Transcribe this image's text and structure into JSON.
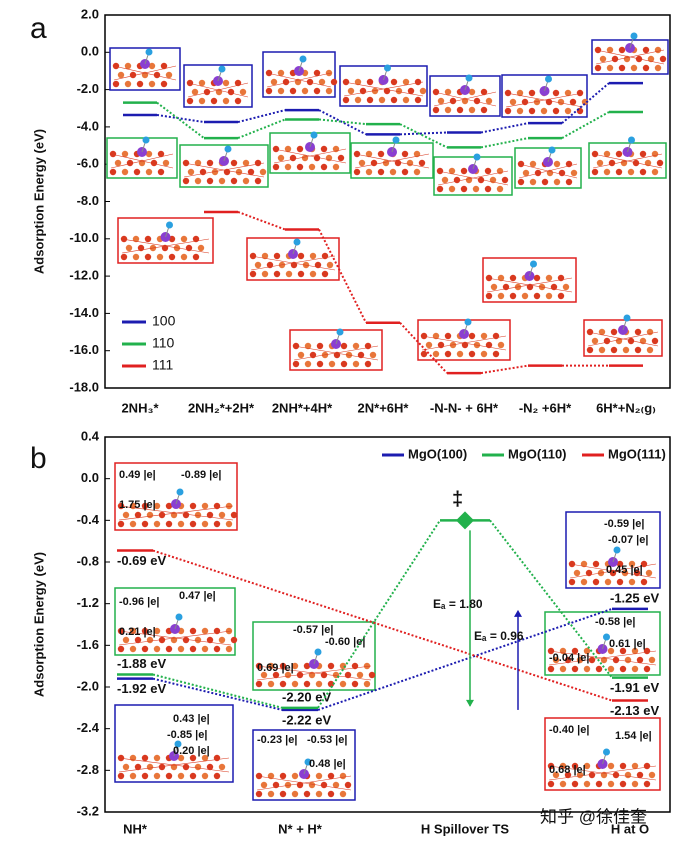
{
  "chart_data": [
    {
      "type": "line",
      "panel": "a",
      "ylabel": "Adsorption Energy (eV)",
      "categories": [
        "2NH₃*",
        "2NH₂*+2H*",
        "2NH*+4H*",
        "2N*+6H*",
        "-N-N- + 6H*",
        "-N₂ +6H*",
        "6H*+N₂₍g₎"
      ],
      "series": [
        {
          "name": "100",
          "color": "#1c1cb0",
          "values": [
            -3.36,
            -3.74,
            -3.1,
            -4.4,
            -4.3,
            -3.8,
            -1.65
          ]
        },
        {
          "name": "110",
          "color": "#22b14c",
          "values": [
            -2.7,
            -4.6,
            -3.6,
            -3.85,
            -5.1,
            -4.6,
            -3.2
          ]
        },
        {
          "name": "111",
          "color": "#e02020",
          "values": [
            null,
            -8.56,
            -9.5,
            -14.5,
            -17.2,
            -16.8,
            -16.8
          ]
        }
      ],
      "ylim": [
        -18,
        2
      ],
      "yticks": [
        {
          "value": 2,
          "label": "2.0"
        },
        {
          "value": 0,
          "label": "0.0"
        },
        {
          "value": -2,
          "label": "-2.0"
        },
        {
          "value": -4,
          "label": "-4.0"
        },
        {
          "value": -6,
          "label": "-6.0"
        },
        {
          "value": -8,
          "label": "-8.0"
        },
        {
          "value": -10,
          "label": "-10.0"
        },
        {
          "value": -12,
          "label": "-12.0"
        },
        {
          "value": -14,
          "label": "-14.0"
        },
        {
          "value": -16,
          "label": "-16.0"
        },
        {
          "value": -18,
          "label": "-18.0"
        }
      ],
      "legend": "lower left"
    },
    {
      "type": "line",
      "panel": "b",
      "ylabel": "Adsorption Energy (eV)",
      "categories": [
        "NH*",
        "N* + H*",
        "H Spillover TS",
        "H at O"
      ],
      "series": [
        {
          "name": "MgO(100)",
          "color": "#1c1cb0",
          "values": [
            -1.92,
            -2.22,
            null,
            -1.25
          ],
          "value_labels": [
            "-1.92 eV",
            "-2.22 eV",
            null,
            "-1.25 eV"
          ]
        },
        {
          "name": "MgO(110)",
          "color": "#22b14c",
          "values": [
            -1.88,
            -2.2,
            -0.4,
            -1.91
          ],
          "value_labels": [
            "-1.88 eV",
            "-2.20 eV",
            null,
            "-1.91 eV"
          ]
        },
        {
          "name": "MgO(111)",
          "color": "#e02020",
          "values": [
            -0.69,
            null,
            null,
            -2.13
          ],
          "value_labels": [
            "-0.69 eV",
            null,
            null,
            "-2.13 eV"
          ]
        }
      ],
      "ylim": [
        -3.2,
        0.4
      ],
      "yticks": [
        {
          "value": 0.4,
          "label": "0.4"
        },
        {
          "value": 0,
          "label": "0.0"
        },
        {
          "value": -0.4,
          "label": "-0.4"
        },
        {
          "value": -0.8,
          "label": "-0.8"
        },
        {
          "value": -1.2,
          "label": "-1.2"
        },
        {
          "value": -1.6,
          "label": "-1.6"
        },
        {
          "value": -2,
          "label": "-2.0"
        },
        {
          "value": -2.4,
          "label": "-2.4"
        },
        {
          "value": -2.8,
          "label": "-2.8"
        },
        {
          "value": -3.2,
          "label": "-3.2"
        }
      ],
      "legend": "upper right",
      "annotations": [
        "‡",
        "Eₐ = 1.80",
        "Eₐ = 0.96"
      ],
      "insets": [
        {
          "labels": [
            {
              "text": "0.49 |e|",
              "color": "#555555"
            },
            {
              "text": "-0.89 |e|",
              "color": "#2a6fb5"
            },
            {
              "text": "1.75 |e|",
              "color": "#7a2a9a"
            }
          ]
        },
        {
          "labels": [
            {
              "text": "-0.96 |e|",
              "color": "#2a6fb5"
            },
            {
              "text": "0.47 |e|",
              "color": "#555555"
            },
            {
              "text": "0.21 |e|",
              "color": "#7a2a9a"
            }
          ]
        },
        {
          "labels": [
            {
              "text": "0.43 |e|",
              "color": "#555555"
            },
            {
              "text": "-0.85 |e|",
              "color": "#2a6fb5"
            },
            {
              "text": "0.20 |e|",
              "color": "#7a2a9a"
            }
          ]
        },
        {
          "labels": [
            {
              "text": "-0.57 |e|",
              "color": "#2a6fb5"
            },
            {
              "text": "-0.60 |e|",
              "color": "#555555"
            },
            {
              "text": "0.69 |e|",
              "color": "#7a2a9a"
            }
          ]
        },
        {
          "labels": [
            {
              "text": "-0.23 |e|",
              "color": "#555555"
            },
            {
              "text": "-0.53 |e|",
              "color": "#2a6fb5"
            },
            {
              "text": "0.48 |e|",
              "color": "#7a2a9a"
            }
          ]
        },
        {
          "labels": [
            {
              "text": "-0.59 |e|",
              "color": "#2a6fb5"
            },
            {
              "text": "-0.07 |e|",
              "color": "#7a5a8a"
            },
            {
              "text": "0.45 |e|",
              "color": "#555555"
            }
          ]
        },
        {
          "labels": [
            {
              "text": "-0.58 |e|",
              "color": "#2a6fb5"
            },
            {
              "text": "0.61 |e|",
              "color": "#555555"
            },
            {
              "text": "-0.04 |e|",
              "color": "#7a2a9a"
            }
          ]
        },
        {
          "labels": [
            {
              "text": "-0.40 |e|",
              "color": "#2a6fb5"
            },
            {
              "text": "1.54 |e|",
              "color": "#7a2a9a"
            },
            {
              "text": "0.68 |e|",
              "color": "#555555"
            }
          ]
        }
      ],
      "watermark": "知乎 @徐佳奎"
    }
  ]
}
